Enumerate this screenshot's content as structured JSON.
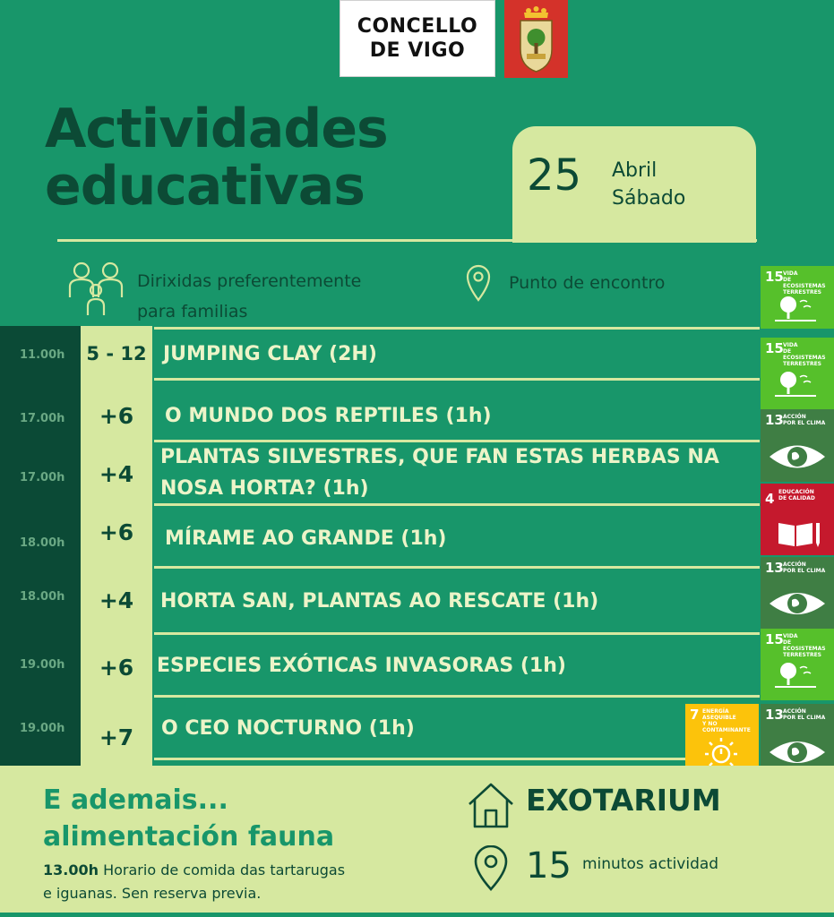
{
  "header": {
    "logo_line1": "CONCELLO",
    "logo_line2": "DE VIGO",
    "title_line1": "Actividades",
    "title_line2": "educativas"
  },
  "date": {
    "day": "25",
    "month": "Abril",
    "weekday": "Sábado"
  },
  "legend": {
    "families_line1": "Dirixidas preferentemente",
    "families_line2": "para familias",
    "meeting_point": "Punto de encontro"
  },
  "schedule": [
    {
      "time": "11.00h",
      "age": "5 - 12",
      "activity": "JUMPING CLAY (2H)"
    },
    {
      "time": "17.00h",
      "age": "+6",
      "activity": "O MUNDO DOS REPTILES (1h)"
    },
    {
      "time": "17.00h",
      "age": "+4",
      "activity_line1": "PLANTAS SILVESTRES, QUE FAN ESTAS HERBAS NA",
      "activity_line2": "NOSA HORTA? (1h)"
    },
    {
      "time": "18.00h",
      "age": "+6",
      "activity": "MÍRAME AO GRANDE (1h)"
    },
    {
      "time": "18.00h",
      "age": "+4",
      "activity": "HORTA SAN, PLANTAS AO RESCATE (1h)"
    },
    {
      "time": "19.00h",
      "age": "+6",
      "activity": "ESPECIES EXÓTICAS INVASORAS (1h)"
    },
    {
      "time": "19.00h",
      "age": "+7",
      "activity": "O CEO NOCTURNO (1h)"
    }
  ],
  "sdg": {
    "s15": {
      "num": "15",
      "label_l1": "VIDA",
      "label_l2": "DE ECOSISTEMAS",
      "label_l3": "TERRESTRES",
      "color": "#56c02b"
    },
    "s13": {
      "num": "13",
      "label_l1": "ACCIÓN",
      "label_l2": "POR EL CLIMA",
      "color": "#3f7e44"
    },
    "s4": {
      "num": "4",
      "label_l1": "EDUCACIÓN",
      "label_l2": "DE CALIDAD",
      "color": "#c5192d"
    },
    "s7": {
      "num": "7",
      "label_l1": "ENERGÍA ASEQUIBLE",
      "label_l2": "Y NO CONTAMINANTE",
      "color": "#fcc30b"
    }
  },
  "extra": {
    "title_line1": "E ademais...",
    "title_line2": "alimentación fauna",
    "time": "13.00h",
    "text_line1": " Horario de comida das tartarugas",
    "text_line2": "e iguanas. Sen reserva previa."
  },
  "location": {
    "name": "EXOTARIUM",
    "minutes": "15",
    "minutes_label": "minutos actividad"
  },
  "colors": {
    "bg": "#18966a",
    "dark": "#0b4a36",
    "light": "#d6e8a0"
  }
}
